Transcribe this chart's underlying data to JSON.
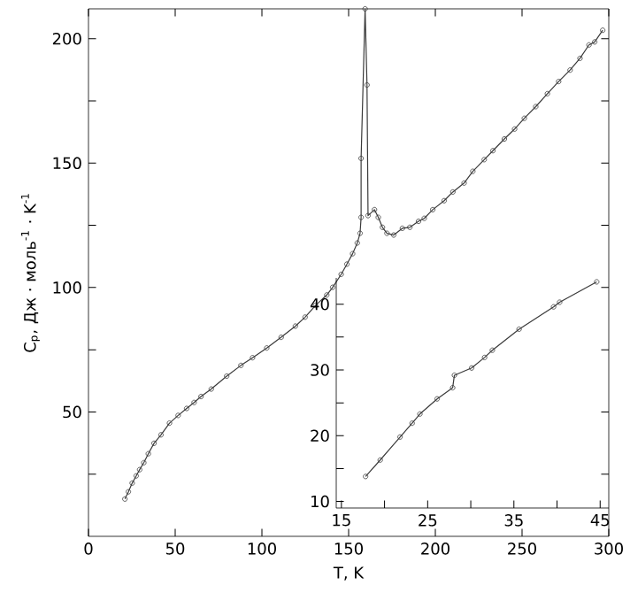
{
  "chart_data": [
    {
      "type": "line",
      "xlabel": "T, K",
      "ylabel": "C$_{p}$, Дж · моль$^{-1}$ · K$^{-1}$",
      "color": "#3a3a3a",
      "marker": "circle",
      "xlim": [
        0,
        300
      ],
      "ylim": [
        0,
        212
      ],
      "xticks": [
        0,
        50,
        100,
        150,
        200,
        250,
        300
      ],
      "yticks": [
        {
          "value": 25,
          "label": null
        },
        50,
        {
          "value": 75,
          "label": null
        },
        100,
        {
          "value": 125,
          "label": null
        },
        150,
        {
          "value": 175,
          "label": null
        },
        200
      ],
      "x": [
        21,
        23,
        25.2,
        27.5,
        29.5,
        31.9,
        34.5,
        37.8,
        41.8,
        46.7,
        51.7,
        56.6,
        60.9,
        64.9,
        70.8,
        79.7,
        87.9,
        94.6,
        102.8,
        111.1,
        119.3,
        124.9,
        130.9,
        137.4,
        140.8,
        145.7,
        149,
        152.3,
        155,
        156.6,
        157.2,
        157.2,
        159.5,
        160.6,
        161.2,
        164.9,
        167.1,
        169.5,
        172.1,
        176,
        181,
        185.3,
        190.3,
        193.6,
        198.5,
        205.1,
        210.1,
        216.6,
        221.6,
        228.2,
        233.2,
        239.8,
        245.7,
        251.3,
        257.9,
        264.6,
        271.1,
        277.7,
        283.4,
        288.6,
        291.9,
        296.5
      ],
      "values": [
        15.0,
        17.9,
        21.4,
        24.3,
        26.8,
        29.6,
        33.2,
        37.4,
        40.8,
        45.5,
        48.6,
        51.4,
        53.8,
        56.2,
        59.2,
        64.4,
        68.7,
        71.8,
        75.7,
        80.0,
        84.5,
        88.1,
        92.8,
        97.0,
        100.1,
        105.3,
        109.4,
        113.6,
        117.9,
        121.8,
        128.2,
        151.9,
        212,
        181.4,
        128.9,
        131.3,
        128.2,
        124.2,
        121.8,
        121.1,
        123.8,
        124.2,
        126.6,
        127.8,
        131.3,
        134.9,
        138.4,
        142.0,
        146.7,
        151.4,
        155.0,
        159.7,
        163.7,
        168.0,
        172.7,
        177.9,
        182.8,
        187.4,
        192.1,
        197.5,
        198.7,
        203.4
      ]
    },
    {
      "type": "line",
      "color": "#3a3a3a",
      "marker": "circle",
      "xlim": [
        14.4,
        46
      ],
      "ylim": [
        9,
        44
      ],
      "xticks": [
        15,
        {
          "value": 20,
          "label": null
        },
        25,
        {
          "value": 30,
          "label": null
        },
        35,
        {
          "value": 40,
          "label": null
        },
        45
      ],
      "yticks": [
        10,
        {
          "value": 15,
          "label": null
        },
        20,
        {
          "value": 25,
          "label": null
        },
        30,
        {
          "value": 35,
          "label": null
        },
        40
      ],
      "x": [
        17.8,
        19.5,
        21.8,
        23.2,
        24.1,
        26.1,
        27.9,
        28.1,
        30.1,
        31.6,
        32.5,
        35.6,
        39.6,
        40.3,
        44.6
      ],
      "values": [
        13.8,
        16.3,
        19.8,
        21.9,
        23.3,
        25.6,
        27.3,
        29.2,
        30.3,
        31.9,
        33.0,
        36.2,
        39.6,
        40.3,
        43.4
      ]
    }
  ]
}
